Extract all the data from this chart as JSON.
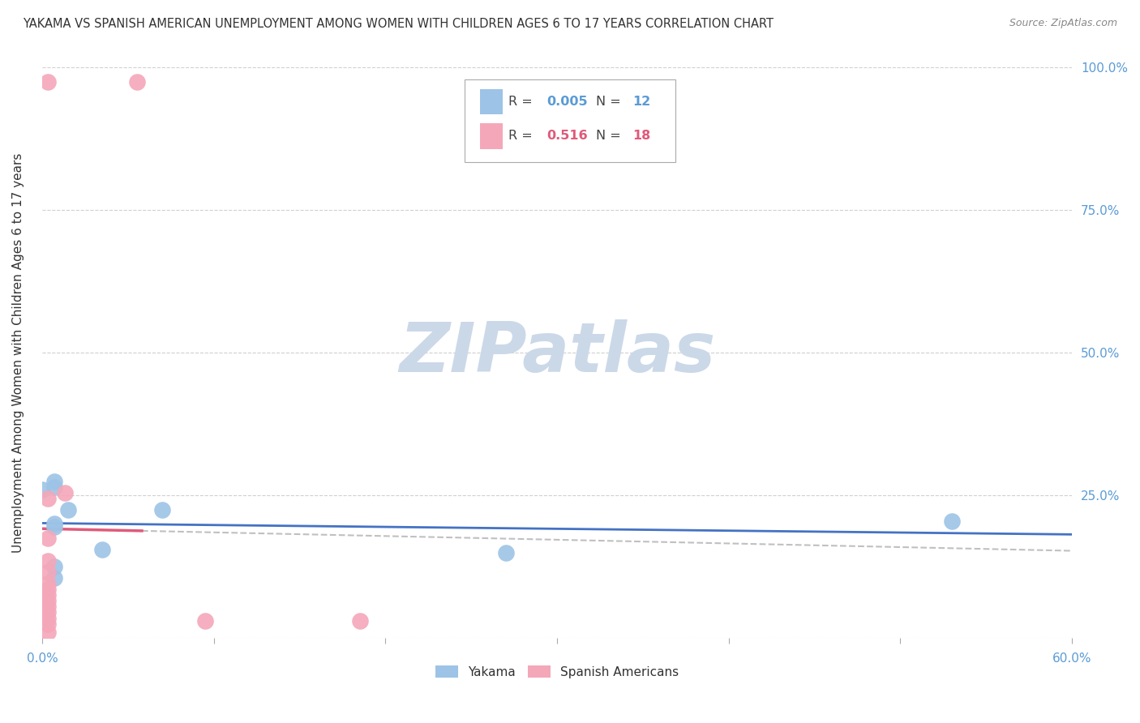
{
  "title": "YAKAMA VS SPANISH AMERICAN UNEMPLOYMENT AMONG WOMEN WITH CHILDREN AGES 6 TO 17 YEARS CORRELATION CHART",
  "source": "Source: ZipAtlas.com",
  "ylabel": "Unemployment Among Women with Children Ages 6 to 17 years",
  "xlim": [
    0.0,
    0.6
  ],
  "ylim": [
    0.0,
    1.0
  ],
  "xtick_positions": [
    0.0,
    0.1,
    0.2,
    0.3,
    0.4,
    0.5,
    0.6
  ],
  "xtick_labels": [
    "0.0%",
    "",
    "",
    "",
    "",
    "",
    "60.0%"
  ],
  "ytick_positions": [
    0.0,
    0.25,
    0.5,
    0.75,
    1.0
  ],
  "ytick_labels": [
    "",
    "25.0%",
    "50.0%",
    "75.0%",
    "100.0%"
  ],
  "yakama_color": "#9DC3E6",
  "spanish_color": "#F4A7B9",
  "yakama_line_color": "#4472C4",
  "spanish_line_color": "#E05A7A",
  "dash_line_color": "#C0C0C0",
  "yakama_R": "0.005",
  "yakama_N": "12",
  "spanish_R": "0.516",
  "spanish_N": "18",
  "legend_R_yakama_color": "#5B9BD5",
  "legend_R_spanish_color": "#E05A7A",
  "legend_N_color": "#5B9BD5",
  "legend_N_spanish_color": "#E05A7A",
  "yakama_points": [
    [
      0.0,
      0.26
    ],
    [
      0.007,
      0.275
    ],
    [
      0.007,
      0.265
    ],
    [
      0.007,
      0.2
    ],
    [
      0.007,
      0.195
    ],
    [
      0.007,
      0.125
    ],
    [
      0.007,
      0.105
    ],
    [
      0.015,
      0.225
    ],
    [
      0.035,
      0.155
    ],
    [
      0.07,
      0.225
    ],
    [
      0.27,
      0.15
    ],
    [
      0.53,
      0.205
    ]
  ],
  "spanish_points": [
    [
      0.003,
      0.975
    ],
    [
      0.003,
      0.245
    ],
    [
      0.003,
      0.175
    ],
    [
      0.003,
      0.135
    ],
    [
      0.003,
      0.115
    ],
    [
      0.003,
      0.095
    ],
    [
      0.003,
      0.085
    ],
    [
      0.003,
      0.075
    ],
    [
      0.003,
      0.065
    ],
    [
      0.003,
      0.055
    ],
    [
      0.003,
      0.045
    ],
    [
      0.003,
      0.035
    ],
    [
      0.003,
      0.025
    ],
    [
      0.003,
      0.01
    ],
    [
      0.013,
      0.255
    ],
    [
      0.055,
      0.975
    ],
    [
      0.095,
      0.03
    ],
    [
      0.185,
      0.03
    ]
  ],
  "watermark_text": "ZIPatlas",
  "watermark_color": "#CBD8E8",
  "background_color": "#FFFFFF",
  "grid_color": "#D0D0D0",
  "title_color": "#333333",
  "axis_label_color": "#333333",
  "tick_color": "#5B9BD5",
  "spanish_trend_x_solid_end": 0.058,
  "spanish_trend_x_dash_start": 0.058,
  "spanish_trend_slope": 13.5,
  "spanish_trend_intercept": -0.03,
  "yakama_trend_y_value": 0.2
}
